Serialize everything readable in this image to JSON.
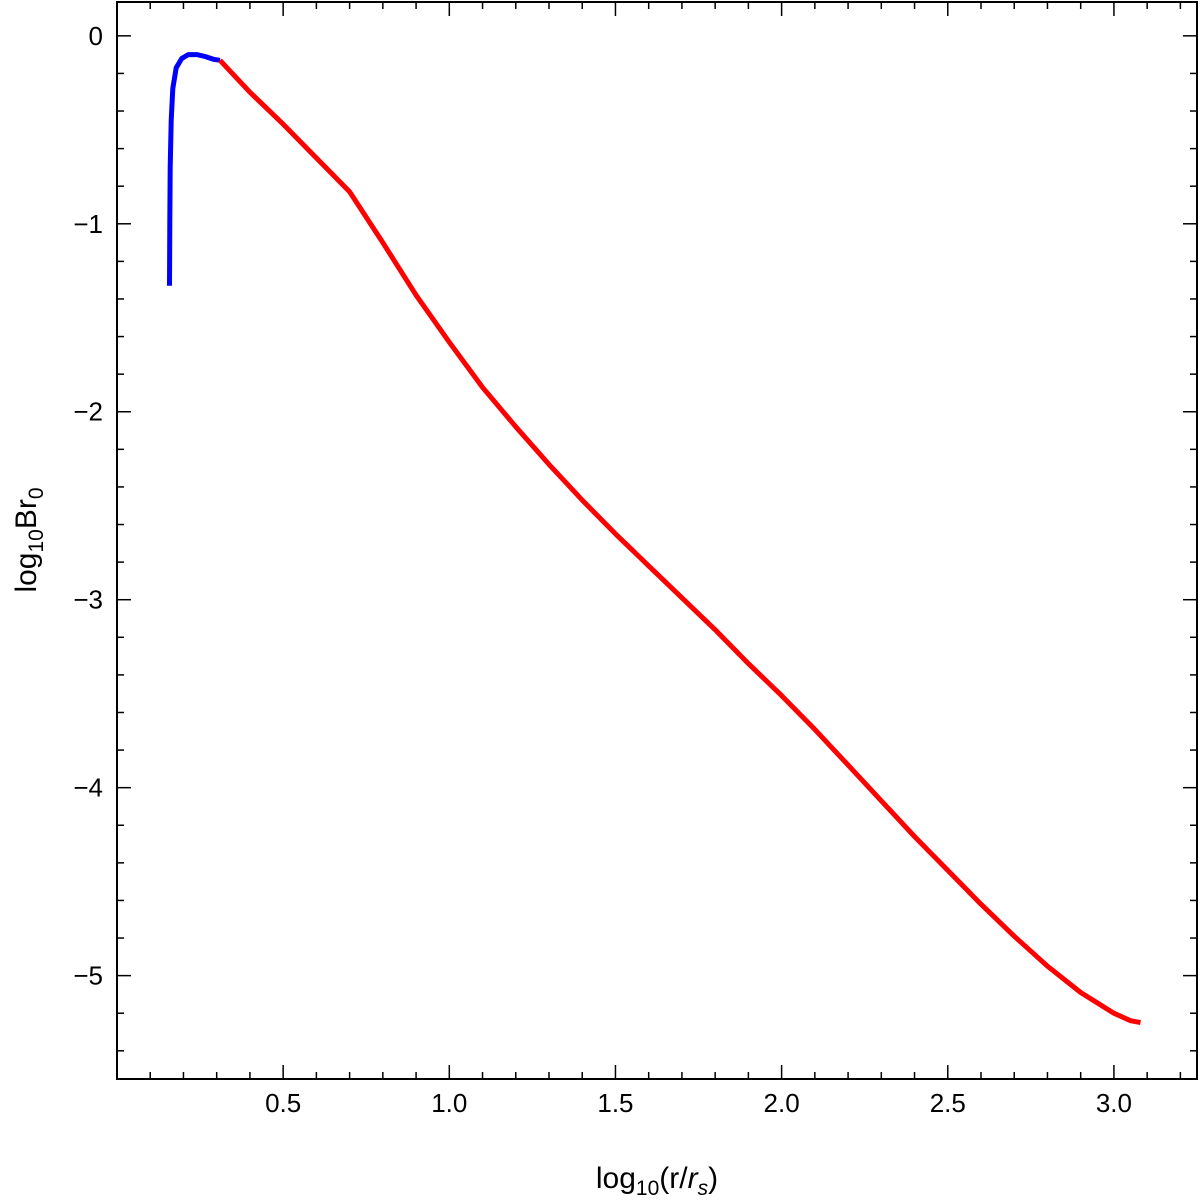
{
  "chart_data": {
    "type": "line",
    "xlabel": {
      "prefix": "log",
      "sub": "10",
      "mid": "(r/",
      "italic": "r",
      "italic_sub": "s",
      "suffix": ")"
    },
    "ylabel": {
      "prefix": "log",
      "sub": "10",
      "mid": "Br",
      "sub2": "0"
    },
    "xlim": [
      0.0,
      3.25
    ],
    "ylim": [
      -5.55,
      0.18
    ],
    "x_ticks": [
      0.5,
      1.0,
      1.5,
      2.0,
      2.5,
      3.0
    ],
    "x_tick_labels": [
      "0.5",
      "1.0",
      "1.5",
      "2.0",
      "2.5",
      "3.0"
    ],
    "y_ticks": [
      0,
      -1,
      -2,
      -3,
      -4,
      -5
    ],
    "y_tick_labels": [
      "0",
      "−1",
      "−2",
      "−3",
      "−4",
      "−5"
    ],
    "grid": false,
    "series": [
      {
        "color": "#0000ff",
        "points": [
          [
            0.158,
            -1.33
          ],
          [
            0.159,
            -1.0
          ],
          [
            0.16,
            -0.7
          ],
          [
            0.163,
            -0.45
          ],
          [
            0.168,
            -0.28
          ],
          [
            0.178,
            -0.17
          ],
          [
            0.195,
            -0.12
          ],
          [
            0.215,
            -0.1
          ],
          [
            0.24,
            -0.1
          ],
          [
            0.265,
            -0.11
          ],
          [
            0.29,
            -0.125
          ],
          [
            0.31,
            -0.13
          ]
        ]
      },
      {
        "color": "#ff0000",
        "points": [
          [
            0.31,
            -0.13
          ],
          [
            0.4,
            -0.3
          ],
          [
            0.5,
            -0.47
          ],
          [
            0.6,
            -0.65
          ],
          [
            0.7,
            -0.83
          ],
          [
            0.8,
            -1.1
          ],
          [
            0.9,
            -1.38
          ],
          [
            1.0,
            -1.63
          ],
          [
            1.1,
            -1.87
          ],
          [
            1.2,
            -2.08
          ],
          [
            1.3,
            -2.28
          ],
          [
            1.4,
            -2.47
          ],
          [
            1.5,
            -2.65
          ],
          [
            1.6,
            -2.82
          ],
          [
            1.7,
            -2.99
          ],
          [
            1.8,
            -3.16
          ],
          [
            1.9,
            -3.34
          ],
          [
            2.0,
            -3.51
          ],
          [
            2.1,
            -3.69
          ],
          [
            2.2,
            -3.88
          ],
          [
            2.3,
            -4.07
          ],
          [
            2.4,
            -4.26
          ],
          [
            2.5,
            -4.44
          ],
          [
            2.6,
            -4.62
          ],
          [
            2.7,
            -4.79
          ],
          [
            2.8,
            -4.95
          ],
          [
            2.9,
            -5.09
          ],
          [
            3.0,
            -5.2
          ],
          [
            3.05,
            -5.24
          ],
          [
            3.08,
            -5.25
          ]
        ]
      }
    ]
  }
}
